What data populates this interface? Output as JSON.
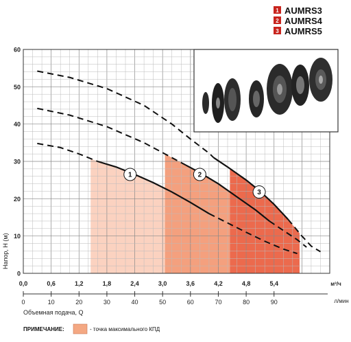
{
  "chart_data": {
    "type": "line",
    "ylabel": "Напор, H (м)",
    "ylim": [
      0,
      60
    ],
    "yticks": [
      "0",
      "10",
      "20",
      "30",
      "40",
      "50",
      "60"
    ],
    "x_primary": {
      "label": "",
      "unit": "м³/ч",
      "range": [
        0,
        6.0
      ],
      "ticks": [
        "0,0",
        "0,6",
        "1,2",
        "1,8",
        "2,4",
        "3,0",
        "3,6",
        "4,2",
        "4,8",
        "5,4"
      ]
    },
    "x_secondary": {
      "label": "Объемная подача, Q",
      "unit": "л/мин",
      "range": [
        0,
        100
      ],
      "ticks": [
        "0",
        "10",
        "20",
        "30",
        "40",
        "50",
        "60",
        "70",
        "80",
        "90"
      ]
    },
    "grid": true,
    "legend": {
      "placement": "top-right",
      "items": [
        {
          "num": "1",
          "name": "AUMRS3",
          "color": "#c8241d"
        },
        {
          "num": "2",
          "name": "AUMRS4",
          "color": "#c8241d"
        },
        {
          "num": "3",
          "name": "AUMRS5",
          "color": "#c8241d"
        }
      ]
    },
    "series": [
      {
        "label": "1",
        "color": "#111111",
        "dashed": [
          [
            0.3,
            34.8
          ],
          [
            0.8,
            33.7
          ],
          [
            1.2,
            32.0
          ],
          [
            1.6,
            30.0
          ]
        ],
        "solid": [
          [
            1.6,
            30.0
          ],
          [
            2.0,
            28.5
          ],
          [
            2.4,
            26.5
          ],
          [
            2.8,
            24.3
          ],
          [
            3.2,
            21.8
          ],
          [
            3.6,
            19.0
          ],
          [
            4.0,
            16.0
          ]
        ],
        "dashed_tail": [
          [
            4.0,
            16.0
          ],
          [
            4.4,
            13.5
          ],
          [
            4.8,
            11.0
          ],
          [
            5.2,
            8.6
          ],
          [
            5.6,
            6.5
          ],
          [
            5.9,
            5.3
          ]
        ],
        "region_x": [
          1.45,
          3.05
        ]
      },
      {
        "label": "2",
        "color": "#111111",
        "dashed": [
          [
            0.3,
            44.2
          ],
          [
            1.0,
            42.4
          ],
          [
            1.8,
            39.3
          ],
          [
            2.6,
            35.0
          ],
          [
            3.2,
            31.0
          ],
          [
            3.5,
            29.0
          ]
        ],
        "solid": [
          [
            3.5,
            29.0
          ],
          [
            3.8,
            27.0
          ],
          [
            4.2,
            24.0
          ],
          [
            4.6,
            20.5
          ],
          [
            5.0,
            17.0
          ],
          [
            5.3,
            14.0
          ]
        ],
        "dashed_tail": [
          [
            5.3,
            14.0
          ],
          [
            5.6,
            11.5
          ],
          [
            5.9,
            9.0
          ],
          [
            6.1,
            7.0
          ]
        ],
        "region_x": [
          3.05,
          4.45
        ]
      },
      {
        "label": "3",
        "color": "#111111",
        "dashed": [
          [
            0.3,
            54.2
          ],
          [
            1.0,
            52.5
          ],
          [
            1.8,
            49.5
          ],
          [
            2.6,
            45.0
          ],
          [
            3.2,
            40.0
          ],
          [
            3.6,
            36.0
          ],
          [
            4.0,
            32.2
          ],
          [
            4.1,
            31.0
          ]
        ],
        "solid": [
          [
            4.1,
            31.0
          ],
          [
            4.4,
            28.5
          ],
          [
            4.8,
            25.0
          ],
          [
            5.1,
            22.0
          ],
          [
            5.4,
            18.5
          ],
          [
            5.7,
            14.5
          ]
        ],
        "dashed_tail": [
          [
            5.7,
            14.5
          ],
          [
            6.0,
            10.0
          ],
          [
            6.2,
            7.3
          ],
          [
            6.4,
            5.8
          ]
        ],
        "region_x": [
          4.45,
          5.95
        ]
      }
    ]
  },
  "note": {
    "title": "ПРИМЕЧАНИЕ:",
    "text": "- точка максимального КПД",
    "color": "#f4a883"
  },
  "colors": {
    "region1": "#fbd2c0",
    "region2": "#f4a07e",
    "region3": "#ec6a4d",
    "photo_bg": "#ffffff"
  }
}
